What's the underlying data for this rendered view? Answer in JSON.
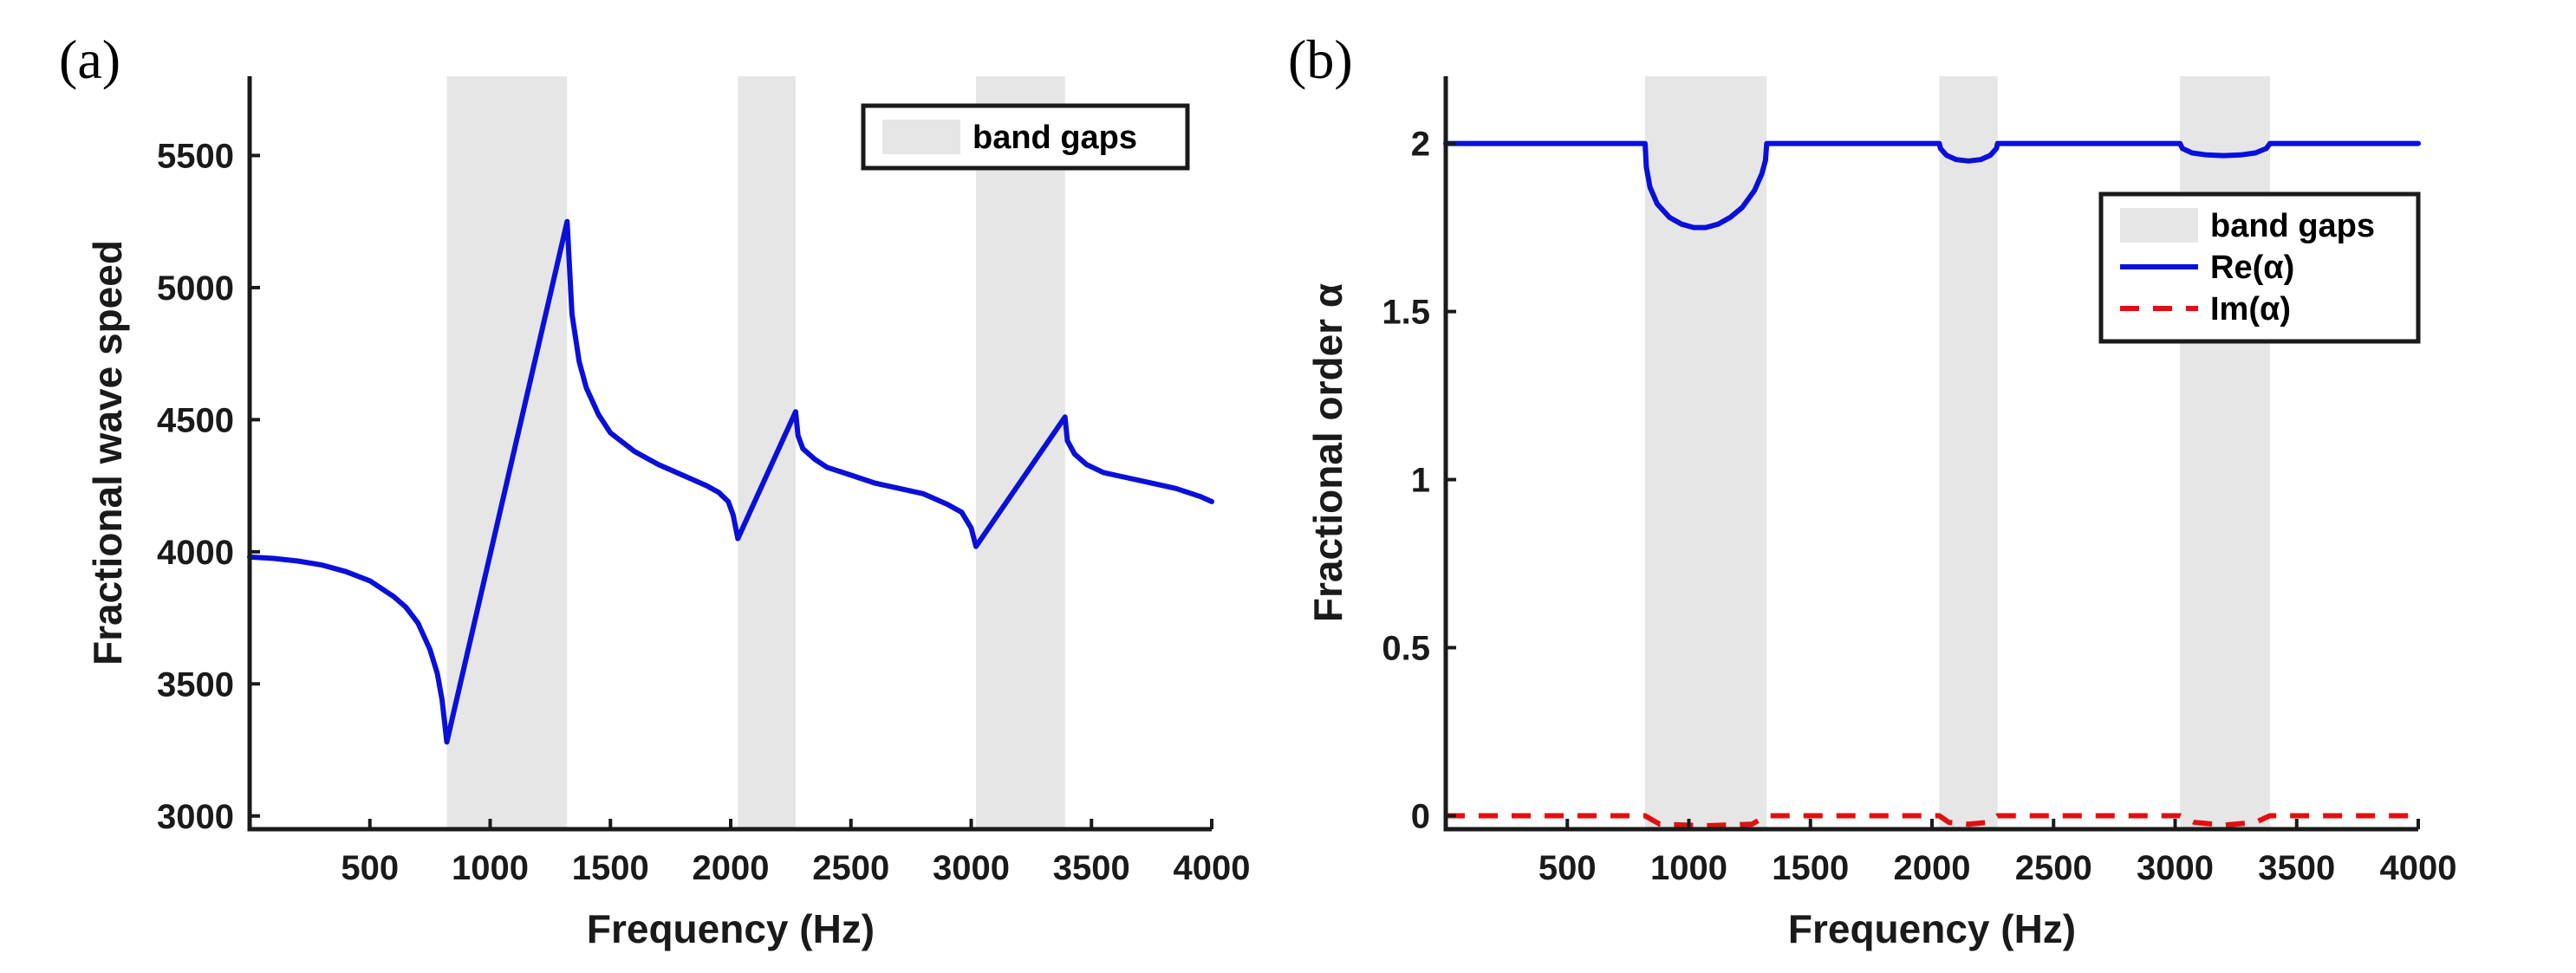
{
  "chart_data": [
    {
      "panel_label": "(a)",
      "type": "line",
      "xlabel": "Frequency (Hz)",
      "ylabel": "Fractional wave speed",
      "xlim": [
        0,
        4000
      ],
      "ylim": [
        2950,
        5800
      ],
      "xticks": [
        500,
        1000,
        1500,
        2000,
        2500,
        3000,
        3500,
        4000
      ],
      "yticks": [
        3000,
        3500,
        4000,
        4500,
        5000,
        5500
      ],
      "legend_position": "top-right",
      "band_gaps": [
        [
          820,
          1320
        ],
        [
          2030,
          2270
        ],
        [
          3020,
          3390
        ]
      ],
      "legend": [
        {
          "label": "band gaps",
          "kind": "patch",
          "color": "#e6e6e6"
        }
      ],
      "series": [
        {
          "name": "wave speed",
          "color": "#0a10d8",
          "style": "solid",
          "x": [
            0,
            100,
            200,
            300,
            400,
            500,
            600,
            650,
            700,
            750,
            780,
            800,
            820,
            1320,
            1340,
            1370,
            1400,
            1450,
            1500,
            1600,
            1700,
            1800,
            1900,
            1950,
            1990,
            2010,
            2030,
            2270,
            2280,
            2300,
            2350,
            2400,
            2500,
            2600,
            2700,
            2800,
            2900,
            2960,
            3000,
            3020,
            3390,
            3400,
            3430,
            3480,
            3550,
            3650,
            3750,
            3850,
            3950,
            4000
          ],
          "y": [
            3980,
            3975,
            3965,
            3950,
            3925,
            3890,
            3830,
            3790,
            3730,
            3630,
            3540,
            3440,
            3280,
            5250,
            4900,
            4720,
            4620,
            4520,
            4450,
            4380,
            4330,
            4290,
            4250,
            4225,
            4190,
            4140,
            4050,
            4530,
            4440,
            4390,
            4350,
            4320,
            4290,
            4260,
            4240,
            4220,
            4180,
            4150,
            4090,
            4020,
            4510,
            4420,
            4370,
            4330,
            4300,
            4280,
            4260,
            4240,
            4210,
            4190
          ]
        }
      ]
    },
    {
      "panel_label": "(b)",
      "type": "line",
      "xlabel": "Frequency (Hz)",
      "ylabel": "Fractional order α",
      "xlim": [
        0,
        4000
      ],
      "ylim": [
        -0.04,
        2.2
      ],
      "xticks": [
        500,
        1000,
        1500,
        2000,
        2500,
        3000,
        3500,
        4000
      ],
      "yticks": [
        0,
        0.5,
        1,
        1.5,
        2
      ],
      "ytick_labels": [
        "0",
        "0.5",
        "1",
        "1.5",
        "2"
      ],
      "legend_position": "top-right",
      "band_gaps": [
        [
          820,
          1320
        ],
        [
          2030,
          2270
        ],
        [
          3020,
          3390
        ]
      ],
      "legend": [
        {
          "label": "band gaps",
          "kind": "patch",
          "color": "#e6e6e6"
        },
        {
          "label": "Re(α)",
          "kind": "solid",
          "color": "#0a10d8"
        },
        {
          "label": "Im(α)",
          "kind": "dashed",
          "color": "#e01010"
        }
      ],
      "series": [
        {
          "name": "Re(α)",
          "color": "#0a10d8",
          "style": "solid",
          "x": [
            0,
            820,
            825,
            840,
            870,
            920,
            970,
            1020,
            1070,
            1120,
            1170,
            1220,
            1270,
            1300,
            1315,
            1320,
            1325,
            2030,
            2035,
            2060,
            2100,
            2150,
            2200,
            2240,
            2265,
            2270,
            2275,
            3020,
            3030,
            3070,
            3130,
            3200,
            3270,
            3330,
            3375,
            3390,
            3395,
            4000
          ],
          "y": [
            2.0,
            2.0,
            1.93,
            1.87,
            1.82,
            1.78,
            1.76,
            1.75,
            1.75,
            1.76,
            1.78,
            1.81,
            1.86,
            1.91,
            1.95,
            2.0,
            2.0,
            2.0,
            1.985,
            1.965,
            1.952,
            1.948,
            1.952,
            1.965,
            1.985,
            2.0,
            2.0,
            2.0,
            1.985,
            1.972,
            1.966,
            1.964,
            1.966,
            1.972,
            1.985,
            2.0,
            2.0,
            2.0
          ]
        },
        {
          "name": "Im(α)",
          "color": "#e01010",
          "style": "dashed",
          "x": [
            0,
            820,
            880,
            1070,
            1260,
            1320,
            2030,
            2070,
            2150,
            2230,
            2270,
            3020,
            3080,
            3200,
            3330,
            3390,
            4000
          ],
          "y": [
            0,
            0,
            -0.025,
            -0.03,
            -0.025,
            0,
            0,
            -0.02,
            -0.025,
            -0.02,
            0,
            0,
            -0.02,
            -0.028,
            -0.02,
            0,
            0
          ]
        }
      ]
    }
  ]
}
